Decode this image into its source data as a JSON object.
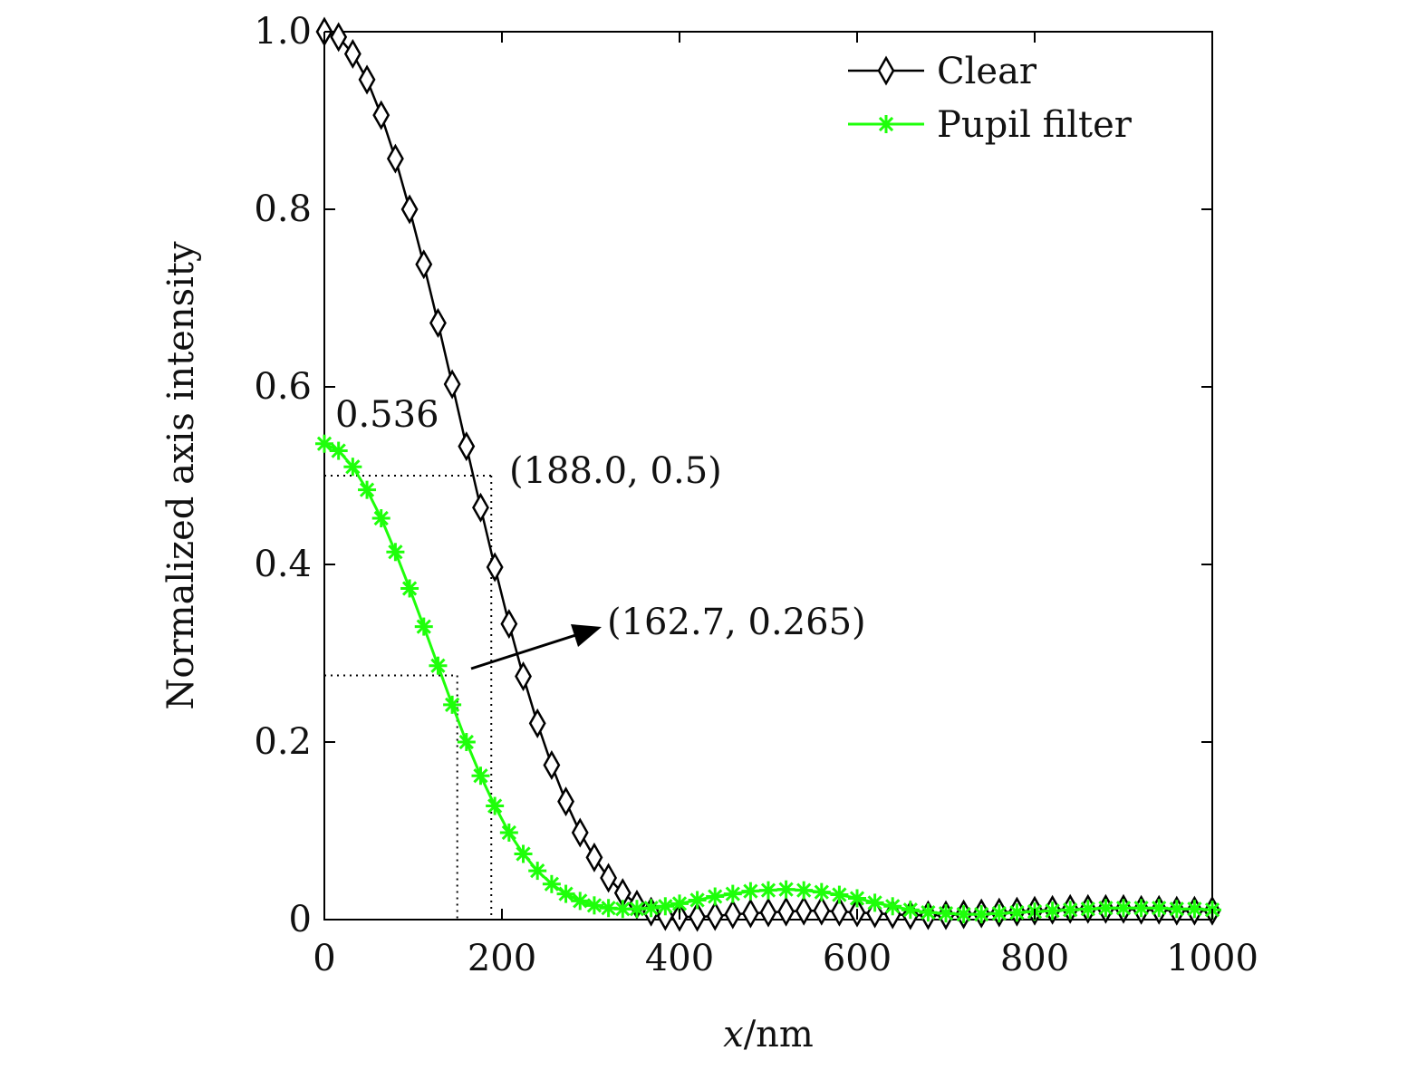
{
  "chart_data": {
    "type": "line",
    "xlabel_var": "x",
    "xlabel_unit": "/nm",
    "ylabel": "Normalized axis intensity",
    "xlim": [
      0,
      1000
    ],
    "ylim": [
      0,
      1.0
    ],
    "xticks": [
      0,
      200,
      400,
      600,
      800,
      1000
    ],
    "xtick_labels": [
      "0",
      "200",
      "400",
      "600",
      "800",
      "1000"
    ],
    "yticks": [
      0,
      0.2,
      0.4,
      0.6,
      0.8,
      1.0
    ],
    "ytick_labels": [
      "0",
      "0.2",
      "0.4",
      "0.6",
      "0.8",
      "1.0"
    ],
    "grid": false,
    "legend_position": "top-right",
    "series": [
      {
        "name": "Clear",
        "color": "#000000",
        "marker": "diamond",
        "x": [
          0,
          16,
          32,
          48,
          64,
          80,
          96,
          112,
          128,
          144,
          160,
          176,
          192,
          208,
          224,
          240,
          256,
          272,
          288,
          304,
          320,
          336,
          352,
          368,
          384,
          400,
          420,
          440,
          460,
          480,
          500,
          520,
          540,
          560,
          580,
          600,
          620,
          640,
          660,
          680,
          700,
          720,
          740,
          760,
          780,
          800,
          820,
          840,
          860,
          880,
          900,
          920,
          940,
          960,
          980,
          1000
        ],
        "y": [
          1.0,
          0.994,
          0.975,
          0.946,
          0.906,
          0.857,
          0.8,
          0.738,
          0.672,
          0.603,
          0.533,
          0.464,
          0.397,
          0.333,
          0.274,
          0.221,
          0.174,
          0.133,
          0.098,
          0.07,
          0.047,
          0.03,
          0.017,
          0.009,
          0.004,
          0.003,
          0.003,
          0.004,
          0.006,
          0.007,
          0.008,
          0.009,
          0.01,
          0.01,
          0.009,
          0.008,
          0.007,
          0.006,
          0.005,
          0.005,
          0.005,
          0.006,
          0.007,
          0.008,
          0.009,
          0.01,
          0.011,
          0.012,
          0.012,
          0.012,
          0.012,
          0.011,
          0.011,
          0.01,
          0.01,
          0.01
        ]
      },
      {
        "name": "Pupil filter",
        "color": "#1eff0a",
        "marker": "asterisk",
        "x": [
          0,
          16,
          32,
          48,
          64,
          80,
          96,
          112,
          128,
          144,
          160,
          176,
          192,
          208,
          224,
          240,
          256,
          272,
          288,
          304,
          320,
          336,
          352,
          368,
          384,
          400,
          420,
          440,
          460,
          480,
          500,
          520,
          540,
          560,
          580,
          600,
          620,
          640,
          660,
          680,
          700,
          720,
          740,
          760,
          780,
          800,
          820,
          840,
          860,
          880,
          900,
          920,
          940,
          960,
          980,
          1000
        ],
        "y": [
          0.536,
          0.528,
          0.51,
          0.484,
          0.452,
          0.414,
          0.373,
          0.33,
          0.286,
          0.242,
          0.2,
          0.162,
          0.128,
          0.098,
          0.074,
          0.055,
          0.04,
          0.029,
          0.021,
          0.016,
          0.013,
          0.012,
          0.012,
          0.013,
          0.015,
          0.018,
          0.022,
          0.026,
          0.029,
          0.032,
          0.033,
          0.034,
          0.033,
          0.031,
          0.028,
          0.024,
          0.019,
          0.015,
          0.011,
          0.008,
          0.007,
          0.006,
          0.006,
          0.007,
          0.008,
          0.009,
          0.01,
          0.011,
          0.012,
          0.013,
          0.013,
          0.013,
          0.013,
          0.012,
          0.012,
          0.011
        ]
      }
    ],
    "annotations": [
      {
        "text": "0.536",
        "x": 0,
        "y": 0.536
      },
      {
        "text": "(188.0, 0.5)",
        "x": 188.0,
        "y": 0.5
      },
      {
        "text": "(162.7, 0.265)",
        "x": 162.7,
        "y": 0.265
      }
    ]
  }
}
